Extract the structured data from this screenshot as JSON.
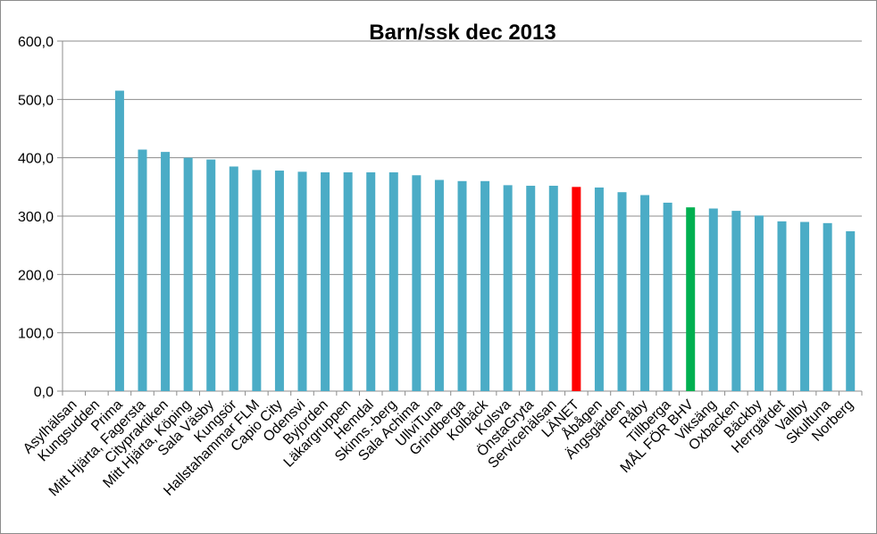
{
  "chart_data": {
    "type": "bar",
    "title": "Barn/ssk dec 2013",
    "xlabel": "",
    "ylabel": "",
    "ylim": [
      0,
      600
    ],
    "yticks": [
      "0,0",
      "100,0",
      "200,0",
      "300,0",
      "400,0",
      "500,0",
      "600,0"
    ],
    "grid": true,
    "legend": "none",
    "default_color": "#4bacc6",
    "categories": [
      "Asylhälsan",
      "Kungsudden",
      "Prima",
      "Mitt Hjärta, Fagersta",
      "Citypraktiken",
      "Mitt Hjärta, Köping",
      "Sala Väsby",
      "Kungsör",
      "Hallstahammar FLM",
      "Capio City",
      "Odensvi",
      "Byjorden",
      "Läkargruppen",
      "Hemdal",
      "Skinns.-berg",
      "Sala Achima",
      "UllviTuna",
      "Grindberga",
      "Kolbäck",
      "Kolsva",
      "ÖnstaGryta",
      "Servicehälsan",
      "LÄNET",
      "Åbågen",
      "Ängsgärden",
      "Råby",
      "Tillberga",
      "MÅL FÖR BHV",
      "Viksäng",
      "Oxbacken",
      "Bäckby",
      "Herrgärdet",
      "Vallby",
      "Skultuna",
      "Norberg"
    ],
    "values": [
      0,
      0,
      515,
      414,
      410,
      400,
      397,
      385,
      379,
      378,
      376,
      375,
      375,
      375,
      375,
      370,
      362,
      360,
      360,
      353,
      352,
      352,
      350,
      349,
      341,
      336,
      323,
      315,
      313,
      309,
      301,
      291,
      290,
      288,
      274
    ],
    "highlights": [
      {
        "category": "LÄNET",
        "color": "#ff0000"
      },
      {
        "category": "MÅL FÖR BHV",
        "color": "#00b050"
      }
    ]
  }
}
